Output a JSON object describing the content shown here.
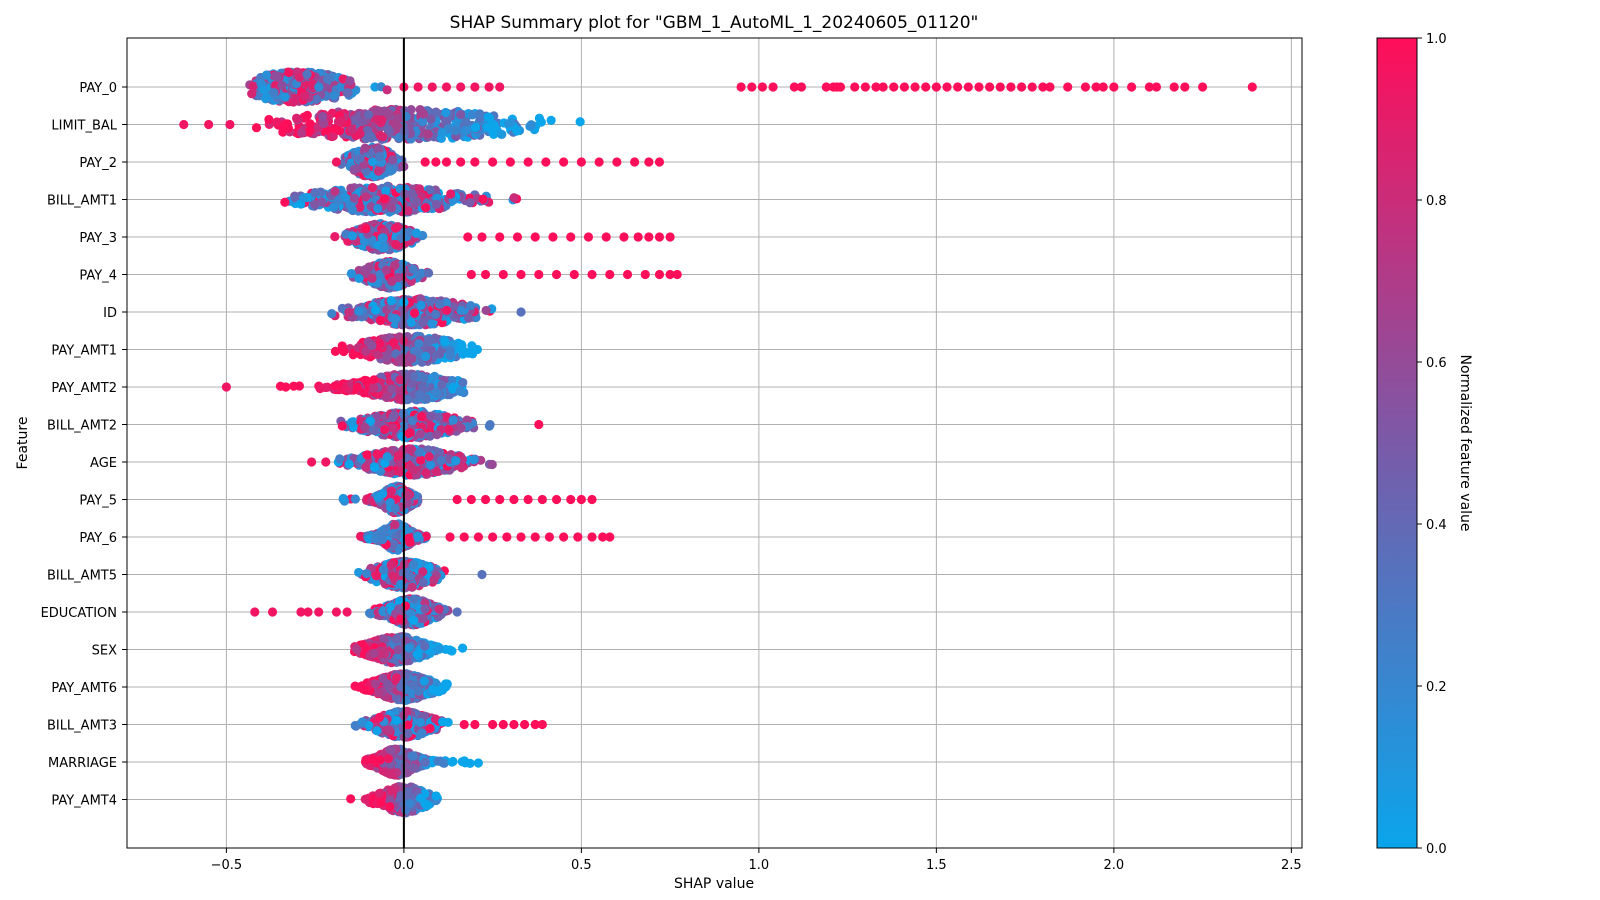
{
  "chart_data": {
    "type": "scatter",
    "subtype": "shap-beeswarm",
    "title": "SHAP Summary plot for \"GBM_1_AutoML_1_20240605_01120\"",
    "xlabel": "SHAP value",
    "ylabel": "Feature",
    "xlim": [
      -0.78,
      2.53
    ],
    "x_ticks": [
      -0.5,
      0.0,
      0.5,
      1.0,
      1.5,
      2.0,
      2.5
    ],
    "x_tick_labels": [
      "−0.5",
      "0.0",
      "0.5",
      "1.0",
      "1.5",
      "2.0",
      "2.5"
    ],
    "grid": true,
    "zero_line": 0.0,
    "colorbar": {
      "label": "Normalized feature value",
      "range": [
        0.0,
        1.0
      ],
      "ticks": [
        0.0,
        0.2,
        0.4,
        0.6,
        0.8,
        1.0
      ],
      "tick_labels": [
        "0.0",
        "0.2",
        "0.4",
        "0.6",
        "0.8",
        "1.0"
      ],
      "color_low": "#0aa5eb",
      "color_mid": "#7a5aa8",
      "color_high": "#ff0e5a"
    },
    "features": [
      {
        "name": "PAY_0",
        "core": [
          -0.44,
          -0.02
        ],
        "center": -0.3,
        "width": 0.13,
        "height": 0.9,
        "high_outliers": [
          0.95,
          0.98,
          1.01,
          1.04,
          1.1,
          1.12,
          1.19,
          1.21,
          1.22,
          1.23,
          1.27,
          1.3,
          1.33,
          1.35,
          1.38,
          1.41,
          1.44,
          1.47,
          1.5,
          1.53,
          1.56,
          1.59,
          1.62,
          1.65,
          1.68,
          1.71,
          1.74,
          1.77,
          1.8,
          1.82,
          1.87,
          1.92,
          1.95,
          1.97,
          2.0,
          2.05,
          2.1,
          2.12,
          2.17,
          2.2,
          2.25,
          2.39
        ],
        "mixed_points": [
          0.0,
          0.04,
          0.08,
          0.12,
          0.16,
          0.2,
          0.24,
          0.27
        ],
        "low_outliers": []
      },
      {
        "name": "LIMIT_BAL",
        "core": [
          -0.47,
          0.59
        ],
        "center": 0.0,
        "width": 0.28,
        "height": 0.9,
        "high_outliers": [],
        "mixed_points": [],
        "low_outliers": [
          -0.62,
          -0.55,
          -0.49
        ]
      },
      {
        "name": "PAY_2",
        "core": [
          -0.18,
          0.02
        ],
        "center": -0.09,
        "width": 0.05,
        "height": 0.9,
        "high_outliers": [
          0.06,
          0.09,
          0.12,
          0.16,
          0.2,
          0.25,
          0.3,
          0.35,
          0.4,
          0.45,
          0.5,
          0.55,
          0.6,
          0.65,
          0.69,
          0.72
        ],
        "mixed_points": [],
        "low_outliers": [
          -0.19
        ]
      },
      {
        "name": "BILL_AMT1",
        "core": [
          -0.38,
          0.41
        ],
        "center": -0.05,
        "width": 0.16,
        "height": 0.8,
        "high_outliers": [],
        "mixed_points": [],
        "low_outliers": []
      },
      {
        "name": "PAY_3",
        "core": [
          -0.2,
          0.08
        ],
        "center": -0.06,
        "width": 0.06,
        "height": 0.8,
        "high_outliers": [
          0.18,
          0.22,
          0.27,
          0.32,
          0.37,
          0.42,
          0.47,
          0.52,
          0.57,
          0.62,
          0.66,
          0.69,
          0.72,
          0.75
        ],
        "mixed_points": [],
        "low_outliers": []
      },
      {
        "name": "PAY_4",
        "core": [
          -0.15,
          0.12
        ],
        "center": -0.04,
        "width": 0.05,
        "height": 0.8,
        "high_outliers": [
          0.19,
          0.23,
          0.28,
          0.33,
          0.38,
          0.43,
          0.48,
          0.53,
          0.58,
          0.63,
          0.68,
          0.72,
          0.75,
          0.77
        ],
        "mixed_points": [],
        "low_outliers": []
      },
      {
        "name": "ID",
        "core": [
          -0.29,
          0.25
        ],
        "center": 0.03,
        "width": 0.12,
        "height": 0.8,
        "high_outliers": [],
        "mixed_points": [],
        "low_outliers": [],
        "extra_points": [
          0.33
        ]
      },
      {
        "name": "PAY_AMT1",
        "core": [
          -0.27,
          0.22
        ],
        "center": 0.02,
        "width": 0.11,
        "height": 0.8,
        "high_outliers": [],
        "mixed_points": [],
        "low_outliers": []
      },
      {
        "name": "PAY_AMT2",
        "core": [
          -0.43,
          0.17
        ],
        "center": 0.02,
        "width": 0.1,
        "height": 0.8,
        "high_outliers": [],
        "mixed_points": [],
        "low_outliers": [
          -0.5
        ]
      },
      {
        "name": "BILL_AMT2",
        "core": [
          -0.18,
          0.34
        ],
        "center": 0.02,
        "width": 0.1,
        "height": 0.8,
        "high_outliers": [
          0.38
        ],
        "mixed_points": [],
        "low_outliers": []
      },
      {
        "name": "AGE",
        "core": [
          -0.2,
          0.31
        ],
        "center": 0.02,
        "width": 0.1,
        "height": 0.8,
        "high_outliers": [],
        "mixed_points": [],
        "low_outliers": [
          -0.26,
          -0.22
        ]
      },
      {
        "name": "PAY_5",
        "core": [
          -0.18,
          0.04
        ],
        "center": -0.02,
        "width": 0.03,
        "height": 0.8,
        "high_outliers": [
          0.15,
          0.19,
          0.23,
          0.27,
          0.31,
          0.35,
          0.39,
          0.43,
          0.47,
          0.5,
          0.53
        ],
        "mixed_points": [],
        "low_outliers": []
      },
      {
        "name": "PAY_6",
        "core": [
          -0.14,
          0.1
        ],
        "center": -0.02,
        "width": 0.03,
        "height": 0.8,
        "high_outliers": [
          0.13,
          0.17,
          0.21,
          0.25,
          0.29,
          0.33,
          0.37,
          0.41,
          0.45,
          0.49,
          0.53,
          0.56,
          0.58
        ],
        "mixed_points": [],
        "low_outliers": []
      },
      {
        "name": "BILL_AMT5",
        "core": [
          -0.13,
          0.16
        ],
        "center": 0.0,
        "width": 0.07,
        "height": 0.8,
        "high_outliers": [],
        "mixed_points": [],
        "low_outliers": [],
        "extra_points": [
          0.22
        ]
      },
      {
        "name": "EDUCATION",
        "core": [
          -0.14,
          0.13
        ],
        "center": 0.02,
        "width": 0.05,
        "height": 0.8,
        "high_outliers": [],
        "mixed_points": [],
        "low_outliers": [
          -0.42,
          -0.37,
          -0.29,
          -0.27,
          -0.24,
          -0.19,
          -0.16
        ],
        "extra_points": [
          0.15
        ]
      },
      {
        "name": "SEX",
        "core": [
          -0.14,
          0.23
        ],
        "center": -0.02,
        "width": 0.06,
        "height": 0.8,
        "high_outliers": [],
        "mixed_points": [],
        "low_outliers": []
      },
      {
        "name": "PAY_AMT6",
        "core": [
          -0.2,
          0.13
        ],
        "center": 0.0,
        "width": 0.06,
        "height": 0.8,
        "high_outliers": [],
        "mixed_points": [],
        "low_outliers": []
      },
      {
        "name": "BILL_AMT3",
        "core": [
          -0.16,
          0.15
        ],
        "center": 0.0,
        "width": 0.06,
        "height": 0.8,
        "high_outliers": [
          0.17,
          0.2,
          0.25,
          0.28,
          0.31,
          0.34,
          0.37,
          0.39
        ],
        "mixed_points": [],
        "low_outliers": []
      },
      {
        "name": "MARRIAGE",
        "core": [
          -0.11,
          0.21
        ],
        "center": -0.02,
        "width": 0.04,
        "height": 0.8,
        "high_outliers": [],
        "mixed_points": [],
        "low_outliers": []
      },
      {
        "name": "PAY_AMT4",
        "core": [
          -0.15,
          0.12
        ],
        "center": 0.0,
        "width": 0.05,
        "height": 0.8,
        "high_outliers": [],
        "mixed_points": [],
        "low_outliers": []
      }
    ]
  }
}
